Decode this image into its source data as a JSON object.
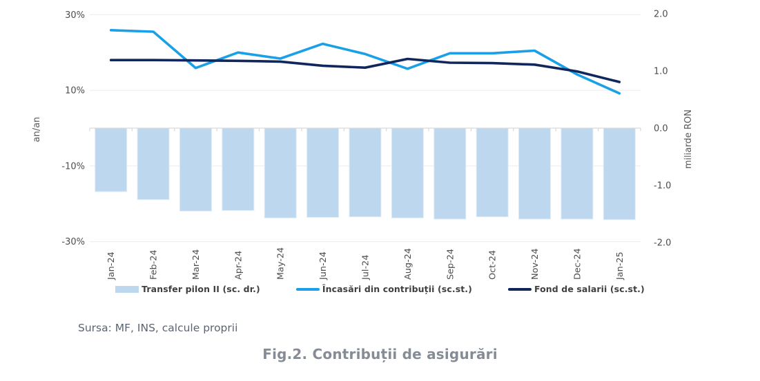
{
  "figure_title": "Fig.2. Contribuții de asigurări",
  "source_note": "Sursa: MF, INS, calcule proprii",
  "colors": {
    "bar_fill": "#BDD7EE",
    "bar_edge": "#DFECF8",
    "line_contributii": "#19A0E6",
    "line_fond_salarii": "#12265E",
    "gridline": "#EBEBEB",
    "axis_line": "#D9D9D9",
    "tick_text": "#4D4D4D",
    "axis_title_text": "#595959",
    "legend_text": "#3F3F3F",
    "source_text": "#5B6473",
    "title_text": "#868C96"
  },
  "chart_data": {
    "type": "combo-bar-line",
    "categories": [
      "Jan-24",
      "Feb-24",
      "Mar-24",
      "Apr-24",
      "May-24",
      "Jun-24",
      "Jul-24",
      "Aug-24",
      "Sep-24",
      "Oct-24",
      "Nov-24",
      "Dec-24",
      "Jan-25"
    ],
    "left_axis": {
      "title": "an/an",
      "unit": "percent",
      "tick_labels": [
        "30%",
        "10%",
        "-10%",
        "-30%"
      ],
      "tick_values": [
        30,
        10,
        -10,
        -30
      ],
      "range": [
        -33,
        33
      ]
    },
    "right_axis": {
      "title": "miliarde RON",
      "unit": "miliarde RON",
      "tick_labels": [
        "2.0",
        "1.0",
        "0.0",
        "-1.0",
        "-2.0"
      ],
      "tick_values": [
        2,
        1,
        0,
        -1,
        -2
      ],
      "range": [
        -2.2,
        2.2
      ]
    },
    "grid": true,
    "legend_position": "bottom",
    "series": [
      {
        "name": "Transfer pilon II (sc. dr.)",
        "type": "bar",
        "axis": "right",
        "color": "#BDD7EE",
        "values": [
          -1.11,
          -1.25,
          -1.45,
          -1.44,
          -1.57,
          -1.56,
          -1.55,
          -1.57,
          -1.59,
          -1.55,
          -1.59,
          -1.59,
          -1.6
        ]
      },
      {
        "name": "Încasări din contribuții (sc.st.)",
        "type": "line",
        "axis": "left",
        "color": "#19A0E6",
        "values": [
          25.9,
          25.5,
          15.9,
          20.0,
          18.4,
          22.3,
          19.6,
          15.7,
          19.8,
          19.8,
          20.5,
          14.2,
          9.2
        ]
      },
      {
        "name": "Fond de salarii (sc.st.)",
        "type": "line",
        "axis": "left",
        "color": "#12265E",
        "values": [
          18.0,
          18.0,
          17.9,
          17.8,
          17.6,
          16.5,
          16.0,
          18.3,
          17.3,
          17.2,
          16.8,
          15.0,
          12.2
        ]
      }
    ]
  }
}
